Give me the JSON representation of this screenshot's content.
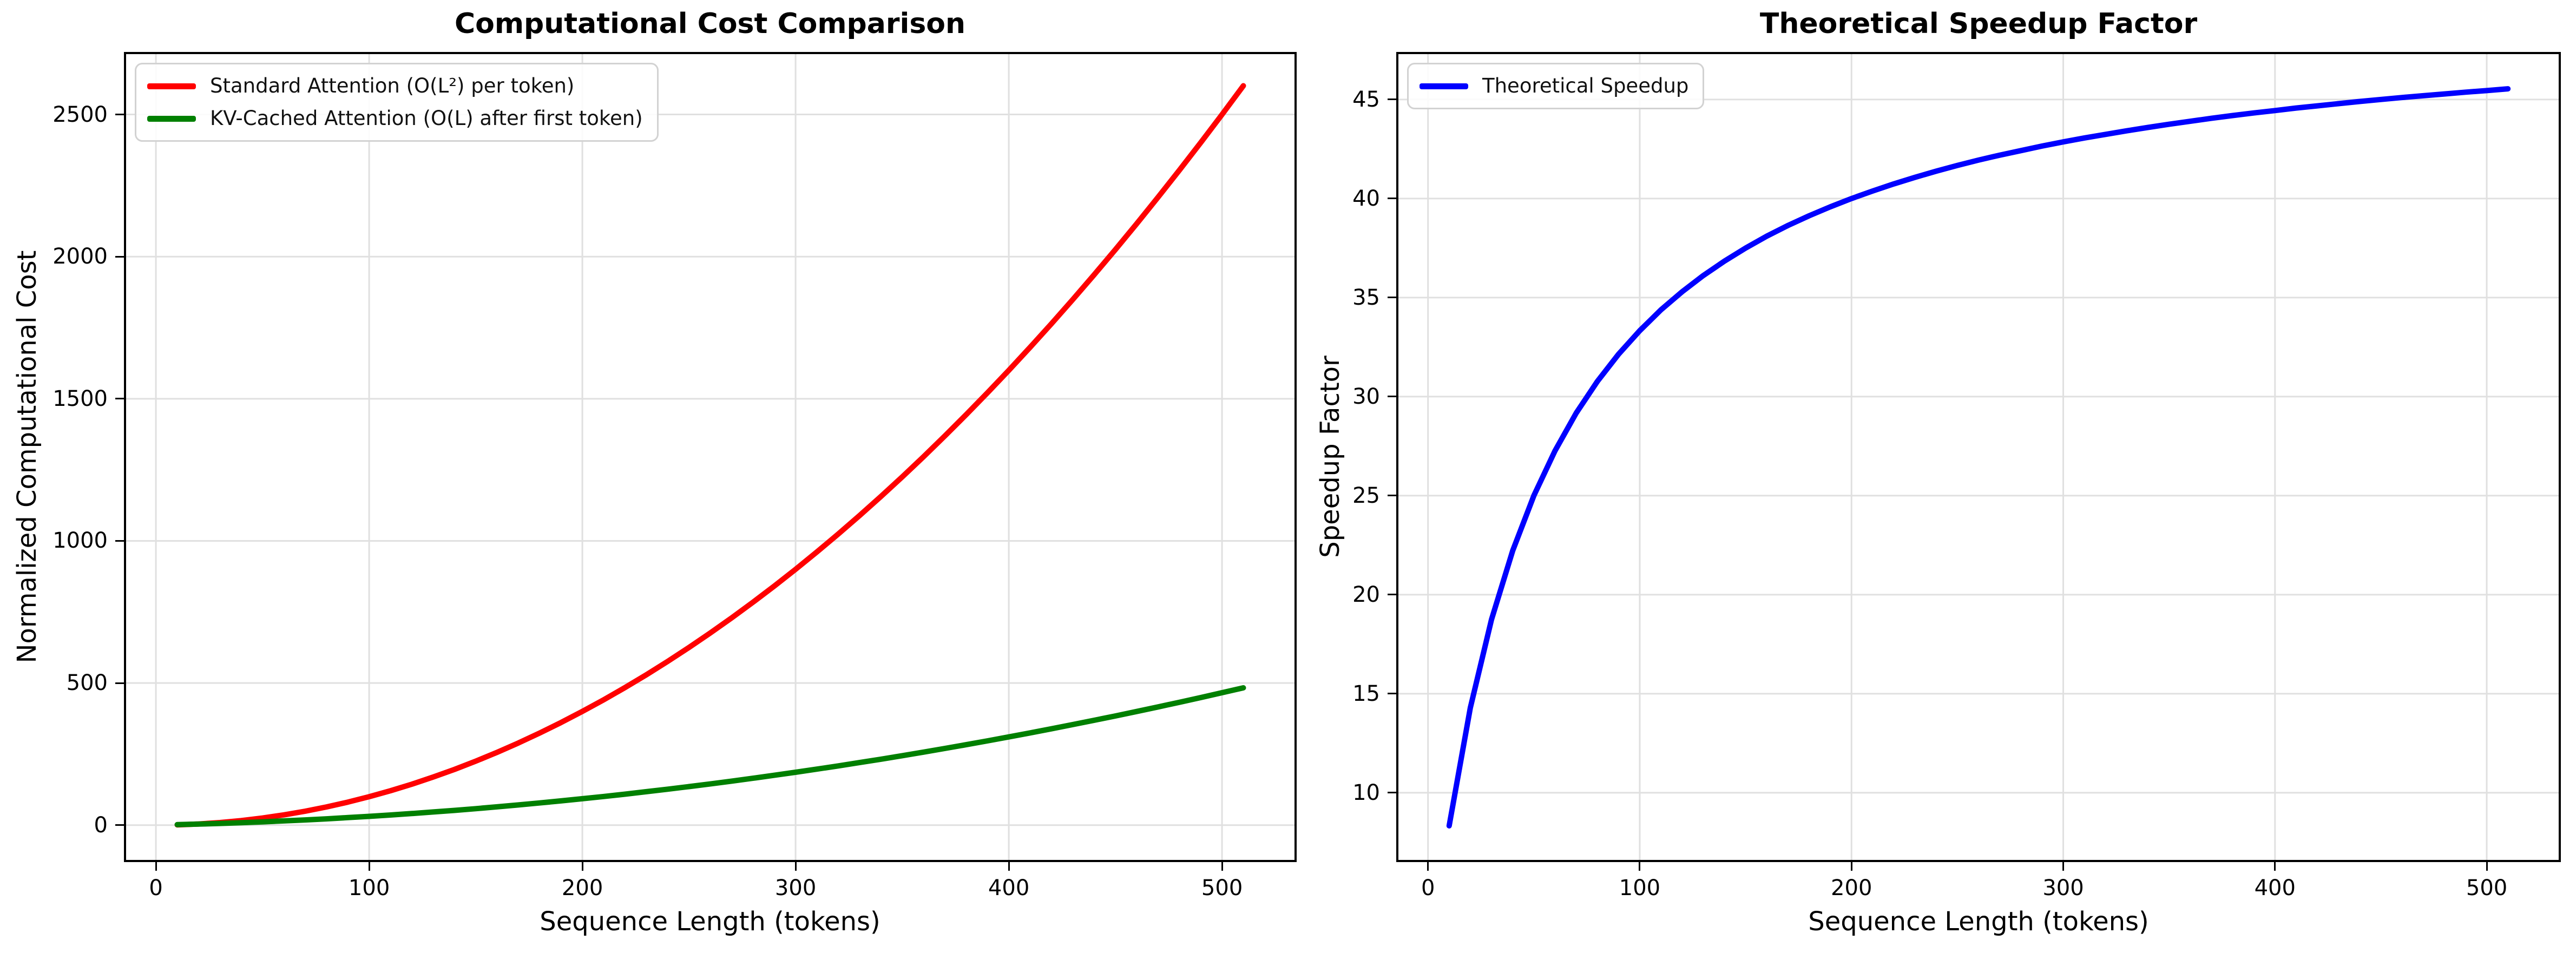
{
  "figure": {
    "background": "#ffffff",
    "grid_color": "#e0e0e0",
    "spine_color": "#000000"
  },
  "chart_data": [
    {
      "type": "line",
      "title": "Computational Cost Comparison",
      "xlabel": "Sequence Length (tokens)",
      "ylabel": "Normalized Computational Cost",
      "xlim": [
        -15,
        535
      ],
      "ylim": [
        -130,
        2720
      ],
      "xticks": [
        0,
        100,
        200,
        300,
        400,
        500
      ],
      "yticks": [
        0,
        500,
        1000,
        1500,
        2000,
        2500
      ],
      "grid": true,
      "legend_position": "upper-left",
      "x": [
        10,
        20,
        30,
        40,
        50,
        60,
        70,
        80,
        90,
        100,
        110,
        120,
        130,
        140,
        150,
        160,
        170,
        180,
        190,
        200,
        210,
        220,
        230,
        240,
        250,
        260,
        270,
        280,
        290,
        300,
        310,
        320,
        330,
        340,
        350,
        360,
        370,
        380,
        390,
        400,
        410,
        420,
        430,
        440,
        450,
        460,
        470,
        480,
        490,
        500,
        510
      ],
      "series": [
        {
          "label": "Standard Attention (O(L²) per token)",
          "color": "#ff0000",
          "values": [
            1,
            4,
            9,
            16,
            25,
            36,
            49,
            64,
            81,
            100,
            121,
            144,
            169,
            196,
            225,
            256,
            289,
            324,
            361,
            400,
            441,
            484,
            529,
            576,
            625,
            676,
            729,
            784,
            841,
            900,
            961,
            1024,
            1089,
            1156,
            1225,
            1296,
            1369,
            1444,
            1521,
            1600,
            1681,
            1764,
            1849,
            1936,
            2025,
            2116,
            2209,
            2304,
            2401,
            2500,
            2601
          ]
        },
        {
          "label": "KV-Cached Attention (O(L) after first token)",
          "color": "#008000",
          "values": [
            1.7,
            3.7,
            6.0,
            8.6,
            11.5,
            14.8,
            18.3,
            22.2,
            26.4,
            30.9,
            35.7,
            40.8,
            46.2,
            51.9,
            58.0,
            64.3,
            71.0,
            78.0,
            85.3,
            92.9,
            100.8,
            109.0,
            117.6,
            126.4,
            135.6,
            145.0,
            154.8,
            164.9,
            175.3,
            186.0,
            197.1,
            208.4,
            220.1,
            232.0,
            244.3,
            256.9,
            269.8,
            283.0,
            296.5,
            310.3,
            324.5,
            338.9,
            353.7,
            368.8,
            384.1,
            399.8,
            415.9,
            432.2,
            448.8,
            465.8,
            483.0
          ]
        }
      ]
    },
    {
      "type": "line",
      "title": "Theoretical Speedup Factor",
      "xlabel": "Sequence Length (tokens)",
      "ylabel": "Speedup Factor",
      "xlim": [
        -15,
        535
      ],
      "ylim": [
        6.5,
        47.4
      ],
      "xticks": [
        0,
        100,
        200,
        300,
        400,
        500
      ],
      "yticks": [
        10,
        15,
        20,
        25,
        30,
        35,
        40,
        45
      ],
      "grid": true,
      "legend_position": "upper-left",
      "x": [
        10,
        20,
        30,
        40,
        50,
        60,
        70,
        80,
        90,
        100,
        110,
        120,
        130,
        140,
        150,
        160,
        170,
        180,
        190,
        200,
        210,
        220,
        230,
        240,
        250,
        260,
        270,
        280,
        290,
        300,
        310,
        320,
        330,
        340,
        350,
        360,
        370,
        380,
        390,
        400,
        410,
        420,
        430,
        440,
        450,
        460,
        470,
        480,
        490,
        500,
        510
      ],
      "series": [
        {
          "label": "Theoretical Speedup",
          "color": "#0000ff",
          "values": [
            8.33,
            14.29,
            18.75,
            22.22,
            25.0,
            27.27,
            29.17,
            30.77,
            32.14,
            33.33,
            34.38,
            35.29,
            36.11,
            36.84,
            37.5,
            38.1,
            38.64,
            39.13,
            39.58,
            40.0,
            40.38,
            40.74,
            41.07,
            41.38,
            41.67,
            41.94,
            42.19,
            42.42,
            42.65,
            42.86,
            43.06,
            43.24,
            43.42,
            43.59,
            43.75,
            43.9,
            44.05,
            44.19,
            44.32,
            44.44,
            44.57,
            44.68,
            44.79,
            44.9,
            45.0,
            45.1,
            45.19,
            45.28,
            45.37,
            45.45,
            45.54
          ]
        }
      ]
    }
  ]
}
